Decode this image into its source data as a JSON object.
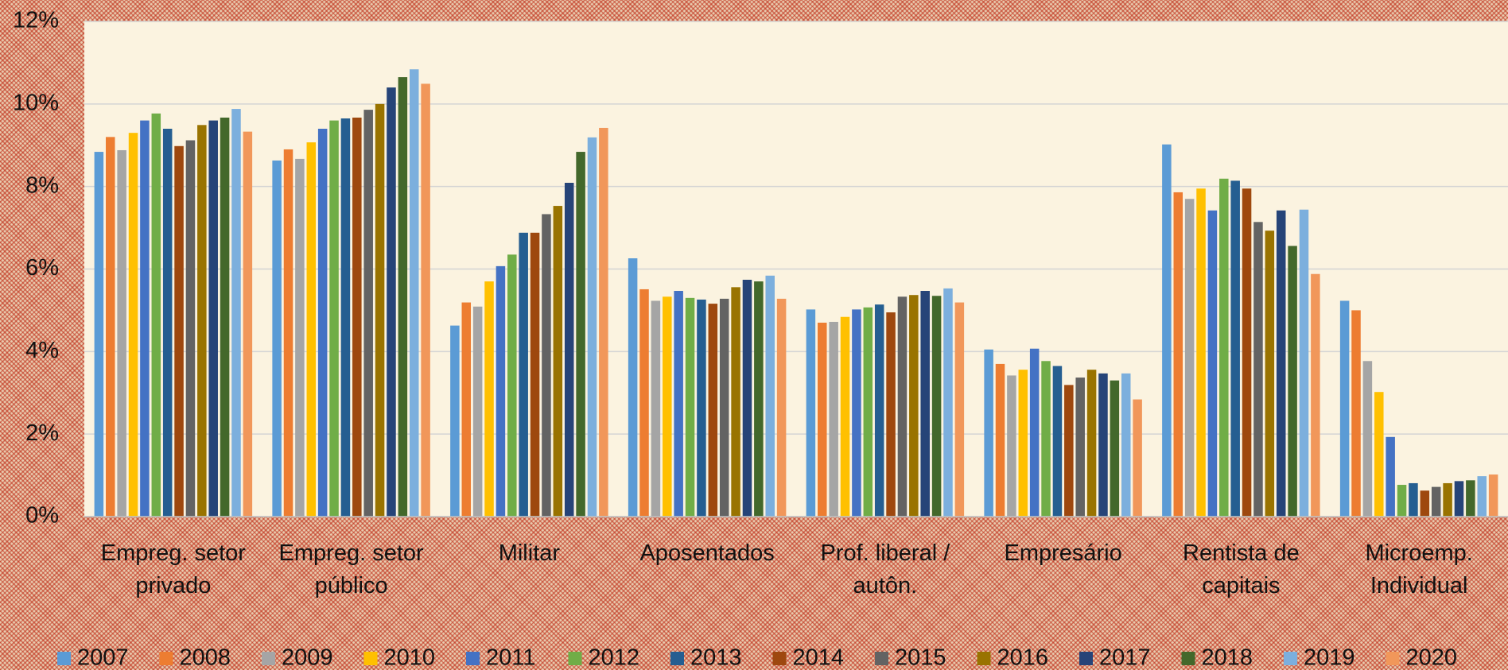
{
  "chart_data": {
    "type": "bar",
    "categories": [
      "Empreg. setor privado",
      "Empreg. setor público",
      "Militar",
      "Aposentados",
      "Prof. liberal / autôn.",
      "Empresário",
      "Rentista de capitais",
      "Microemp. Individual"
    ],
    "ylim": [
      0,
      12
    ],
    "yticks": [
      {
        "value": 0,
        "label": "0%"
      },
      {
        "value": 2,
        "label": "2%"
      },
      {
        "value": 4,
        "label": "4%"
      },
      {
        "value": 6,
        "label": "6%"
      },
      {
        "value": 8,
        "label": "8%"
      },
      {
        "value": 10,
        "label": "10%"
      },
      {
        "value": 12,
        "label": "12%"
      }
    ],
    "grid": true,
    "legend": "bottom",
    "series": [
      {
        "name": "2007",
        "color": "#5b9bd5",
        "values": [
          8.84,
          8.63,
          4.63,
          6.26,
          5.02,
          4.05,
          9.02,
          5.23
        ]
      },
      {
        "name": "2008",
        "color": "#ed7d31",
        "values": [
          9.2,
          8.9,
          5.19,
          5.51,
          4.7,
          3.7,
          7.86,
          5.0
        ]
      },
      {
        "name": "2009",
        "color": "#a5a5a5",
        "values": [
          8.88,
          8.67,
          5.09,
          5.23,
          4.72,
          3.42,
          7.7,
          3.77
        ]
      },
      {
        "name": "2010",
        "color": "#ffc000",
        "values": [
          9.3,
          9.07,
          5.7,
          5.33,
          4.84,
          3.56,
          7.95,
          3.02
        ]
      },
      {
        "name": "2011",
        "color": "#4472c4",
        "values": [
          9.6,
          9.4,
          6.07,
          5.47,
          5.02,
          4.07,
          7.42,
          1.93
        ]
      },
      {
        "name": "2012",
        "color": "#70ad47",
        "values": [
          9.77,
          9.6,
          6.35,
          5.3,
          5.07,
          3.77,
          8.19,
          0.77
        ]
      },
      {
        "name": "2013",
        "color": "#255e91",
        "values": [
          9.4,
          9.65,
          6.88,
          5.26,
          5.14,
          3.65,
          8.14,
          0.81
        ]
      },
      {
        "name": "2014",
        "color": "#9e480e",
        "values": [
          8.98,
          9.67,
          6.88,
          5.16,
          4.95,
          3.19,
          7.95,
          0.63
        ]
      },
      {
        "name": "2015",
        "color": "#636363",
        "values": [
          9.12,
          9.86,
          7.33,
          5.28,
          5.33,
          3.37,
          7.14,
          0.72
        ]
      },
      {
        "name": "2016",
        "color": "#997300",
        "values": [
          9.49,
          10.0,
          7.53,
          5.56,
          5.37,
          3.56,
          6.93,
          0.81
        ]
      },
      {
        "name": "2017",
        "color": "#264478",
        "values": [
          9.6,
          10.4,
          8.09,
          5.74,
          5.47,
          3.47,
          7.42,
          0.86
        ]
      },
      {
        "name": "2018",
        "color": "#43682b",
        "values": [
          9.67,
          10.65,
          8.84,
          5.7,
          5.35,
          3.3,
          6.56,
          0.88
        ]
      },
      {
        "name": "2019",
        "color": "#7cafdd",
        "values": [
          9.88,
          10.84,
          9.19,
          5.84,
          5.53,
          3.47,
          7.44,
          0.98
        ]
      },
      {
        "name": "2020",
        "color": "#f1975a",
        "values": [
          9.33,
          10.49,
          9.42,
          5.28,
          5.19,
          2.84,
          5.88,
          1.02
        ]
      }
    ]
  }
}
